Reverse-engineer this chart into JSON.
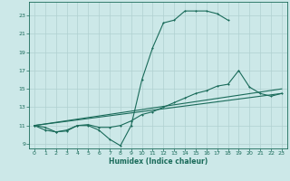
{
  "xlabel": "Humidex (Indice chaleur)",
  "bg_color": "#cce8e8",
  "grid_color": "#b0d0d0",
  "line_color": "#1a6b5a",
  "xlim": [
    -0.5,
    23.5
  ],
  "ylim": [
    8.5,
    24.5
  ],
  "xticks": [
    0,
    1,
    2,
    3,
    4,
    5,
    6,
    7,
    8,
    9,
    10,
    11,
    12,
    13,
    14,
    15,
    16,
    17,
    18,
    19,
    20,
    21,
    22,
    23
  ],
  "yticks": [
    9,
    11,
    13,
    15,
    17,
    19,
    21,
    23
  ],
  "line1_x": [
    0,
    1,
    2,
    3,
    4,
    5,
    6,
    7,
    8,
    9,
    10,
    11,
    12,
    13,
    14,
    15,
    16,
    17,
    18
  ],
  "line1_y": [
    11,
    10.5,
    10.3,
    10.5,
    11,
    11,
    10.5,
    9.5,
    8.8,
    11,
    16,
    19.5,
    22.2,
    22.5,
    23.5,
    23.5,
    23.5,
    23.2,
    22.5
  ],
  "line2_x": [
    0,
    1,
    2,
    3,
    4,
    5,
    6,
    7,
    8,
    9,
    10,
    11,
    12,
    13,
    14,
    15,
    16,
    17,
    18,
    19,
    20,
    21,
    22,
    23
  ],
  "line2_y": [
    11,
    10.8,
    10.3,
    10.4,
    11.0,
    11.1,
    10.8,
    10.8,
    11.0,
    11.5,
    12.2,
    12.5,
    13.0,
    13.5,
    14.0,
    14.5,
    14.8,
    15.3,
    15.5,
    17.0,
    15.2,
    14.5,
    14.2,
    14.5
  ],
  "line3_x": [
    0,
    23
  ],
  "line3_y": [
    11,
    14.5
  ],
  "line4_x": [
    0,
    23
  ],
  "line4_y": [
    11,
    15.0
  ]
}
